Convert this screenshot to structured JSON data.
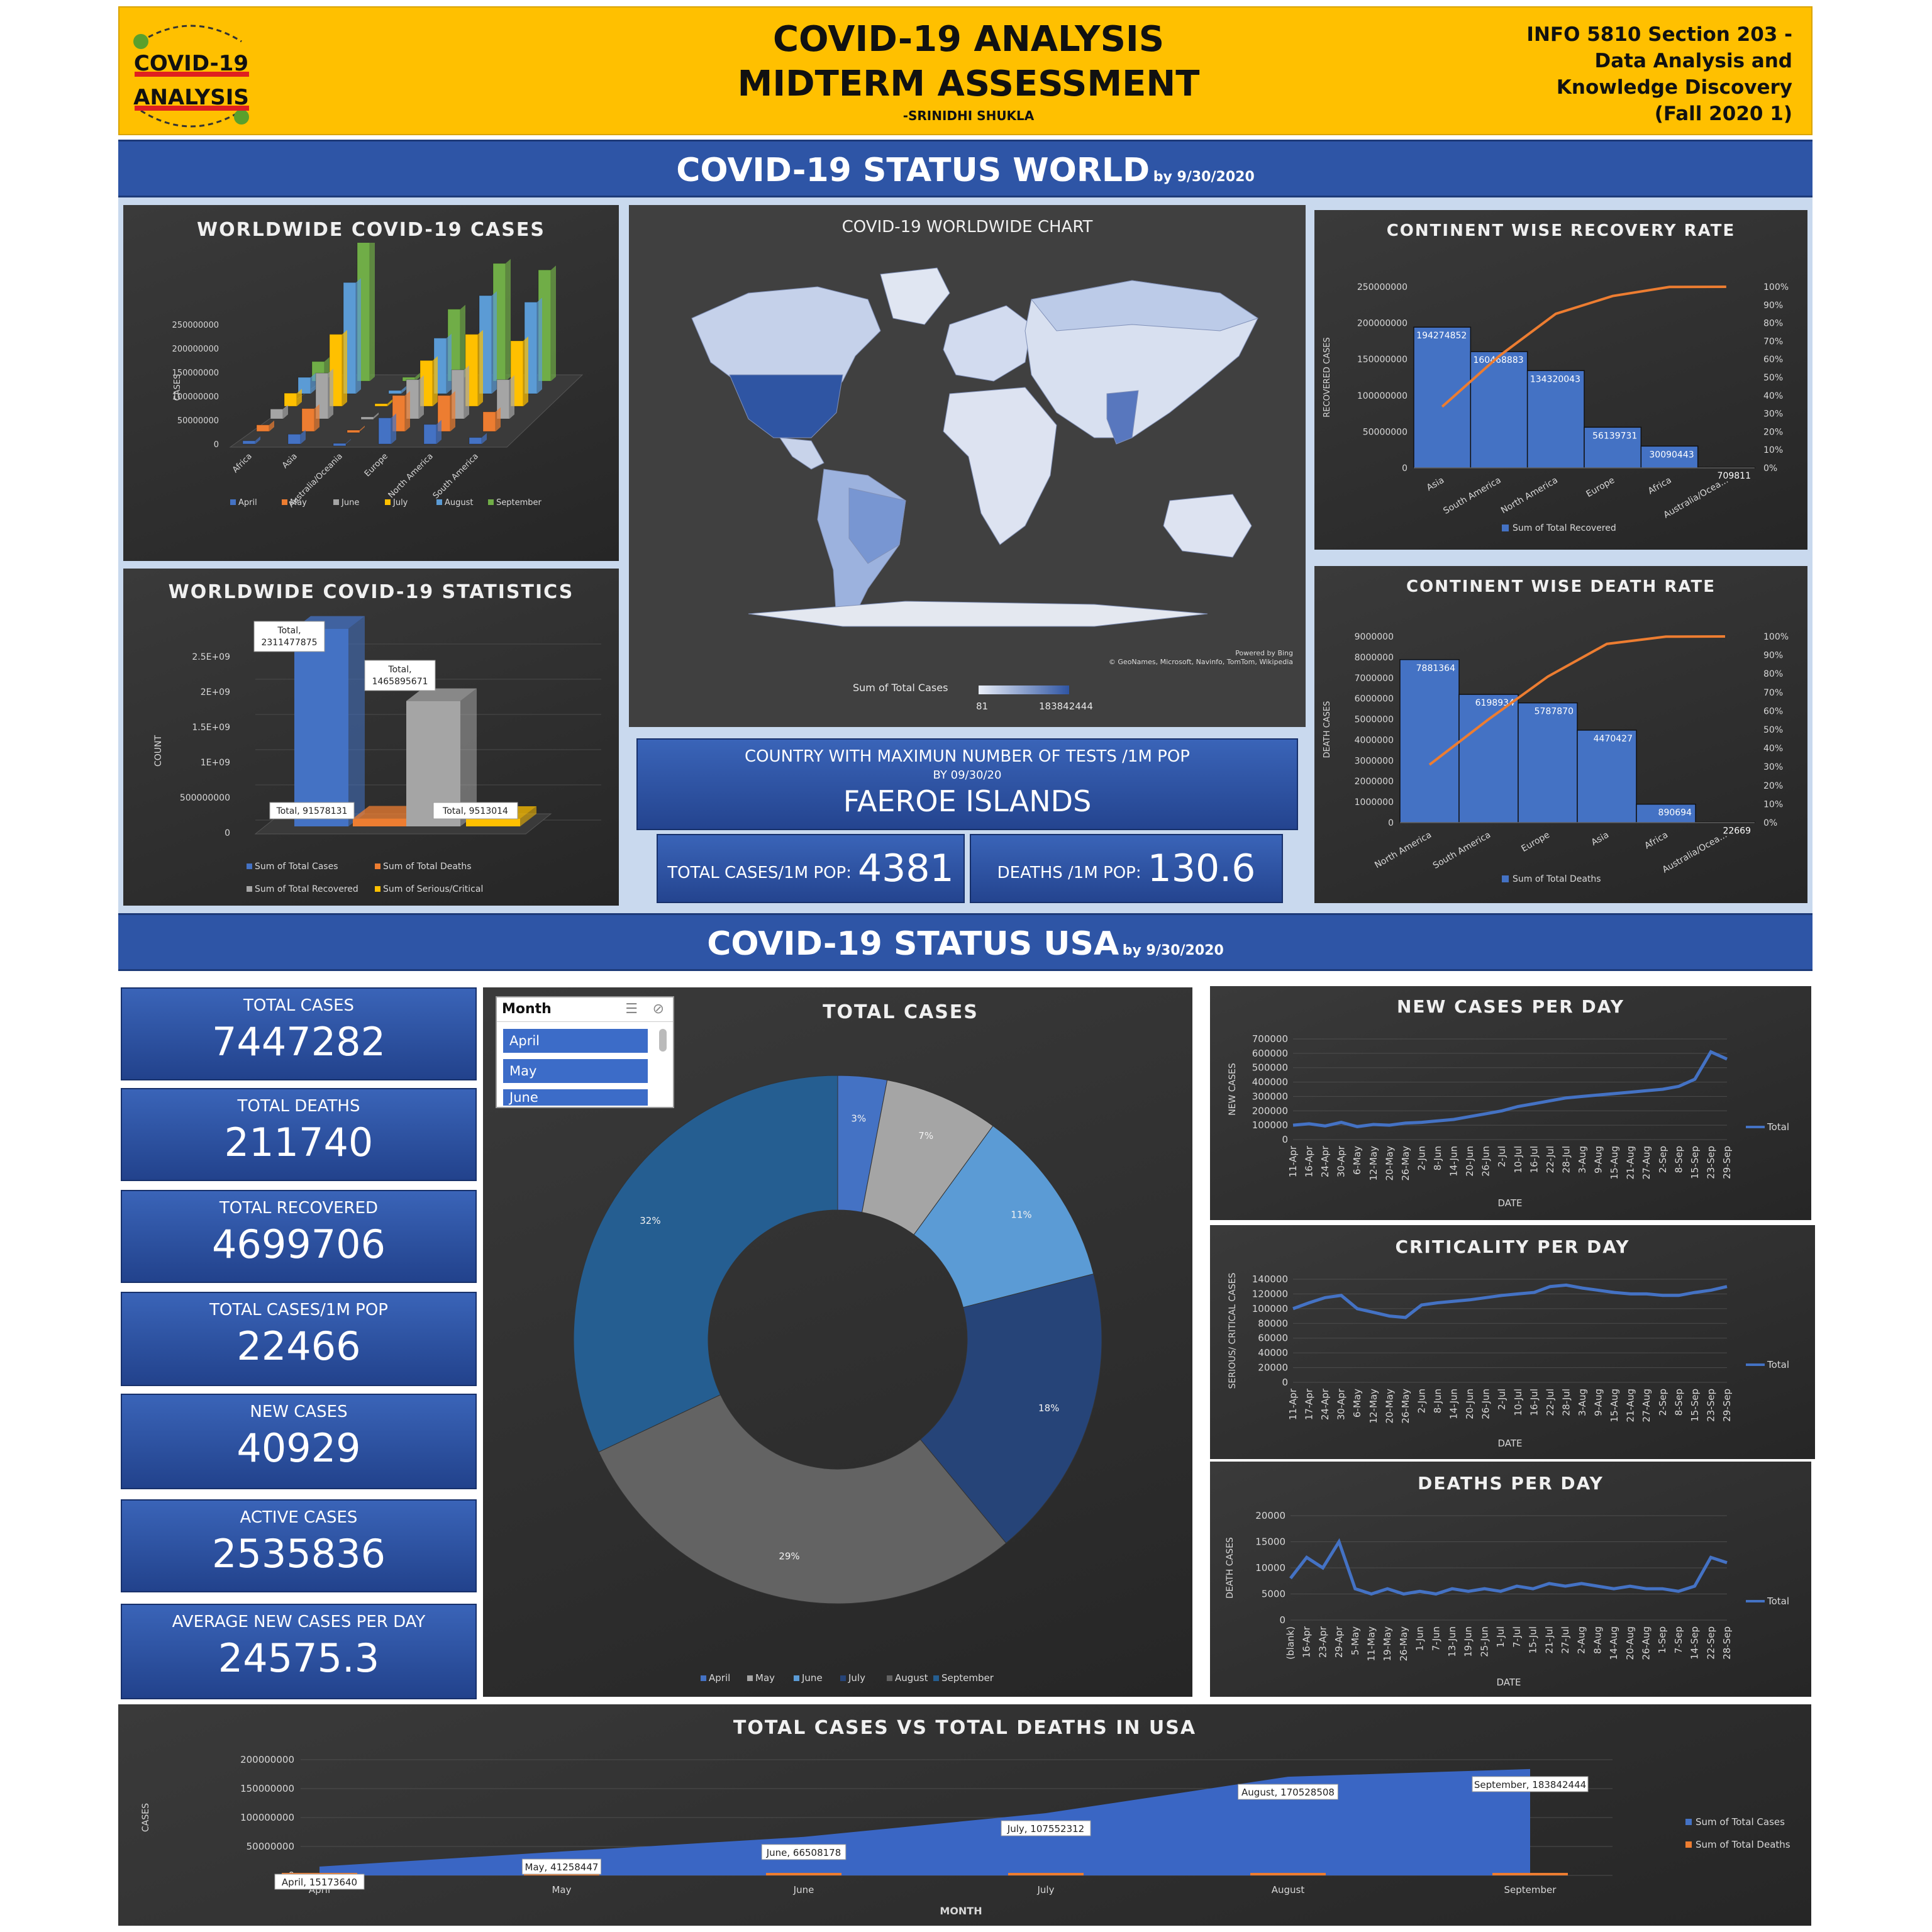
{
  "header": {
    "logo_line1": "COVID-19",
    "logo_line2": "ANALYSIS",
    "title_line1": "COVID-19 ANALYSIS",
    "title_line2": "MIDTERM ASSESSMENT",
    "author": "-SRINIDHI SHUKLA",
    "course_line1": "INFO 5810 Section 203 -",
    "course_line2": "Data Analysis and",
    "course_line3": "Knowledge Discovery",
    "course_line4": "(Fall 2020 1)"
  },
  "world_banner": {
    "title": "COVID-19 STATUS WORLD",
    "date": "by 9/30/2020"
  },
  "usa_banner": {
    "title": "COVID-19 STATUS USA",
    "date": "by 9/30/2020"
  },
  "map": {
    "title": "COVID-19 WORLDWIDE CHART",
    "credit1": "Powered by Bing",
    "credit2": "© GeoNames, Microsoft, Navinfo, TomTom, Wikipedia",
    "legend_label": "Sum of Total Cases",
    "legend_min": "81",
    "legend_max": "183842444"
  },
  "tests": {
    "title": "COUNTRY WITH MAXIMUN NUMBER OF TESTS /1M POP",
    "subtitle": "BY 09/30/20",
    "country": "FAEROE ISLANDS",
    "cases_label": "TOTAL CASES/1M POP:",
    "cases_value": "4381",
    "deaths_label": "DEATHS /1M POP:",
    "deaths_value": "130.6"
  },
  "usa_kpis": [
    {
      "label": "TOTAL CASES",
      "value": "7447282"
    },
    {
      "label": "TOTAL DEATHS",
      "value": "211740"
    },
    {
      "label": "TOTAL RECOVERED",
      "value": "4699706"
    },
    {
      "label": "TOTAL CASES/1M POP",
      "value": "22466"
    },
    {
      "label": "NEW CASES",
      "value": "40929"
    },
    {
      "label": "ACTIVE CASES",
      "value": "2535836"
    },
    {
      "label": "AVERAGE NEW CASES PER DAY",
      "value": "24575.3"
    }
  ],
  "slicer": {
    "title": "Month",
    "items": [
      "April",
      "May",
      "June"
    ]
  },
  "colors": {
    "blue": "#4472c4",
    "orange": "#ed7d31",
    "gray": "#a5a5a5",
    "yellow": "#ffc000",
    "lightblue": "#5b9bd5",
    "green": "#70ad47",
    "header": "#ffc000",
    "banner": "#2e55a6"
  },
  "chart_data": [
    {
      "id": "worldwide_cases",
      "type": "bar",
      "title": "WORLDWIDE COVID-19 CASES",
      "ylabel": "CASES",
      "yticks": [
        "0",
        "50000000",
        "100000000",
        "150000000",
        "200000000",
        "250000000"
      ],
      "ylim": [
        0,
        250000000
      ],
      "categories": [
        "Africa",
        "Asia",
        "Australia/Oceania",
        "Europe",
        "North America",
        "South America"
      ],
      "series": [
        {
          "name": "April",
          "values": [
            5000000,
            15000000,
            1000000,
            40000000,
            30000000,
            10000000
          ]
        },
        {
          "name": "May",
          "values": [
            10000000,
            35000000,
            2000000,
            55000000,
            55000000,
            30000000
          ]
        },
        {
          "name": "June",
          "values": [
            15000000,
            70000000,
            3000000,
            60000000,
            75000000,
            60000000
          ]
        },
        {
          "name": "July",
          "values": [
            20000000,
            110000000,
            4000000,
            70000000,
            110000000,
            100000000
          ]
        },
        {
          "name": "August",
          "values": [
            25000000,
            170000000,
            5000000,
            85000000,
            150000000,
            140000000
          ]
        },
        {
          "name": "September",
          "values": [
            30000000,
            230000000,
            6000000,
            110000000,
            180000000,
            170000000
          ]
        }
      ],
      "legend": "bottom"
    },
    {
      "id": "worldwide_stats",
      "type": "bar",
      "title": "WORLDWIDE COVID-19 STATISTICS",
      "ylabel": "COUNT",
      "yticks": [
        "0",
        "500000000",
        "1E+09",
        "1.5E+09",
        "2E+09",
        "2.5E+09"
      ],
      "ylim": [
        0,
        2500000000
      ],
      "categories": [
        "Total"
      ],
      "series": [
        {
          "name": "Sum of Total Cases",
          "values": [
            2311477875
          ]
        },
        {
          "name": "Sum of Total Deaths",
          "values": [
            91578131
          ]
        },
        {
          "name": "Sum of Total Recovered",
          "values": [
            1465895671
          ]
        },
        {
          "name": "Sum of Serious/Critical",
          "values": [
            9513014
          ]
        }
      ],
      "data_labels": [
        "Total, 2311477875",
        "Total, 91578131",
        "Total, 1465895671",
        "Total, 9513014"
      ],
      "legend": "bottom"
    },
    {
      "id": "recovery_rate",
      "type": "bar",
      "title": "CONTINENT WISE RECOVERY RATE",
      "ylabel": "RECOVERED CASES",
      "yticks": [
        "0",
        "50000000",
        "100000000",
        "150000000",
        "200000000",
        "250000000"
      ],
      "ylim": [
        0,
        250000000
      ],
      "y2ticks": [
        "0%",
        "10%",
        "20%",
        "30%",
        "40%",
        "50%",
        "60%",
        "70%",
        "80%",
        "90%",
        "100%"
      ],
      "categories": [
        "Asia",
        "South America",
        "North America",
        "Europe",
        "Africa",
        "Australia/Ocea..."
      ],
      "values": [
        194274852,
        160468883,
        134320043,
        56139731,
        30090443,
        709811
      ],
      "labels": [
        "194274852",
        "160468883",
        "134320043",
        "56139731",
        "30090443",
        "709811"
      ],
      "cumulative_pct": [
        33.8,
        61.7,
        85.1,
        94.9,
        99.9,
        100
      ],
      "series_name": "Sum of Total Recovered",
      "legend": "bottom"
    },
    {
      "id": "death_rate",
      "type": "bar",
      "title": "CONTINENT WISE DEATH RATE",
      "ylabel": "DEATH CASES",
      "yticks": [
        "0",
        "1000000",
        "2000000",
        "3000000",
        "4000000",
        "5000000",
        "6000000",
        "7000000",
        "8000000",
        "9000000"
      ],
      "ylim": [
        0,
        9000000
      ],
      "y2ticks": [
        "0%",
        "10%",
        "20%",
        "30%",
        "40%",
        "50%",
        "60%",
        "70%",
        "80%",
        "90%",
        "100%"
      ],
      "categories": [
        "North America",
        "South America",
        "Europe",
        "Asia",
        "Africa",
        "Australia/Ocea..."
      ],
      "values": [
        7881364,
        6198934,
        5787870,
        4470427,
        890694,
        22669
      ],
      "labels": [
        "7881364",
        "6198934",
        "5787870",
        "4470427",
        "890694",
        "22669"
      ],
      "cumulative_pct": [
        31.1,
        55.5,
        78.4,
        96.0,
        99.9,
        100
      ],
      "series_name": "Sum of Total Deaths",
      "legend": "bottom"
    },
    {
      "id": "usa_total_cases_pie",
      "type": "pie",
      "title": "TOTAL CASES",
      "categories": [
        "April",
        "May",
        "June",
        "July",
        "August",
        "September"
      ],
      "values": [
        3,
        7,
        11,
        18,
        29,
        32
      ],
      "labels": [
        "3%",
        "7%",
        "11%",
        "18%",
        "29%",
        "32%"
      ],
      "colors": [
        "#4472c4",
        "#a5a5a5",
        "#5b9bd5",
        "#264478",
        "#636363",
        "#255e91"
      ],
      "legend": "bottom"
    },
    {
      "id": "new_cases_per_day",
      "type": "line",
      "title": "NEW CASES PER DAY",
      "xlabel": "DATE",
      "ylabel": "NEW CASES",
      "yticks": [
        "0",
        "100000",
        "200000",
        "300000",
        "400000",
        "500000",
        "600000",
        "700000"
      ],
      "ylim": [
        0,
        700000
      ],
      "xticks": [
        "11-Apr",
        "16-Apr",
        "24-Apr",
        "30-Apr",
        "6-May",
        "12-May",
        "20-May",
        "26-May",
        "2-Jun",
        "8-Jun",
        "14-Jun",
        "20-Jun",
        "26-Jun",
        "2-Jul",
        "10-Jul",
        "16-Jul",
        "22-Jul",
        "28-Jul",
        "3-Aug",
        "9-Aug",
        "15-Aug",
        "21-Aug",
        "27-Aug",
        "2-Sep",
        "8-Sep",
        "15-Sep",
        "23-Sep",
        "29-Sep"
      ],
      "values": [
        100000,
        110000,
        95000,
        120000,
        90000,
        105000,
        100000,
        115000,
        120000,
        130000,
        140000,
        160000,
        180000,
        200000,
        230000,
        250000,
        270000,
        290000,
        300000,
        310000,
        320000,
        330000,
        340000,
        350000,
        370000,
        420000,
        610000,
        560000
      ],
      "series_name": "Total",
      "legend": "right"
    },
    {
      "id": "criticality_per_day",
      "type": "line",
      "title": "CRITICALITY PER DAY",
      "xlabel": "DATE",
      "ylabel": "SERIOUS/ CRITICAL CASES",
      "yticks": [
        "0",
        "20000",
        "40000",
        "60000",
        "80000",
        "100000",
        "120000",
        "140000"
      ],
      "ylim": [
        0,
        140000
      ],
      "xticks": [
        "11-Apr",
        "17-Apr",
        "24-Apr",
        "30-Apr",
        "6-May",
        "12-May",
        "20-May",
        "26-May",
        "2-Jun",
        "8-Jun",
        "14-Jun",
        "20-Jun",
        "26-Jun",
        "2-Jul",
        "10-Jul",
        "16-Jul",
        "22-Jul",
        "28-Jul",
        "3-Aug",
        "9-Aug",
        "15-Aug",
        "21-Aug",
        "27-Aug",
        "2-Sep",
        "8-Sep",
        "15-Sep",
        "23-Sep",
        "29-Sep"
      ],
      "values": [
        100000,
        108000,
        115000,
        118000,
        100000,
        95000,
        90000,
        88000,
        105000,
        108000,
        110000,
        112000,
        115000,
        118000,
        120000,
        122000,
        130000,
        132000,
        128000,
        125000,
        122000,
        120000,
        120000,
        118000,
        118000,
        122000,
        125000,
        130000
      ],
      "series_name": "Total",
      "legend": "right"
    },
    {
      "id": "deaths_per_day",
      "type": "line",
      "title": "DEATHS PER DAY",
      "xlabel": "DATE",
      "ylabel": "DEATH CASES",
      "yticks": [
        "0",
        "5000",
        "10000",
        "15000",
        "20000"
      ],
      "ylim": [
        0,
        20000
      ],
      "xticks": [
        "(blank)",
        "16-Apr",
        "23-Apr",
        "29-Apr",
        "5-May",
        "11-May",
        "19-May",
        "26-May",
        "1-Jun",
        "7-Jun",
        "13-Jun",
        "19-Jun",
        "25-Jun",
        "1-Jul",
        "7-Jul",
        "15-Jul",
        "21-Jul",
        "27-Jul",
        "2-Aug",
        "8-Aug",
        "14-Aug",
        "20-Aug",
        "26-Aug",
        "1-Sep",
        "7-Sep",
        "14-Sep",
        "22-Sep",
        "28-Sep"
      ],
      "values": [
        8000,
        12000,
        10000,
        15000,
        6000,
        5000,
        6000,
        5000,
        5500,
        5000,
        6000,
        5500,
        6000,
        5500,
        6500,
        6000,
        7000,
        6500,
        7000,
        6500,
        6000,
        6500,
        6000,
        6000,
        5500,
        6500,
        12000,
        11000
      ],
      "series_name": "Total",
      "legend": "right"
    },
    {
      "id": "cases_vs_deaths_usa",
      "type": "area",
      "title": "TOTAL CASES VS TOTAL DEATHS IN USA",
      "xlabel": "MONTH",
      "ylabel": "CASES",
      "yticks": [
        "0",
        "50000000",
        "100000000",
        "150000000",
        "200000000"
      ],
      "ylim": [
        0,
        200000000
      ],
      "categories": [
        "April",
        "May",
        "June",
        "July",
        "August",
        "September"
      ],
      "series": [
        {
          "name": "Sum of Total Cases",
          "values": [
            15173640,
            41258447,
            66508178,
            107552312,
            170528508,
            183842444
          ]
        },
        {
          "name": "Sum of Total Deaths",
          "values": [
            500000,
            800000,
            900000,
            1000000,
            1100000,
            1200000
          ]
        }
      ],
      "data_labels": [
        "April, 15173640",
        "May, 41258447",
        "June, 66508178",
        "July, 107552312",
        "August, 170528508",
        "September, 183842444"
      ],
      "legend": "right"
    }
  ]
}
